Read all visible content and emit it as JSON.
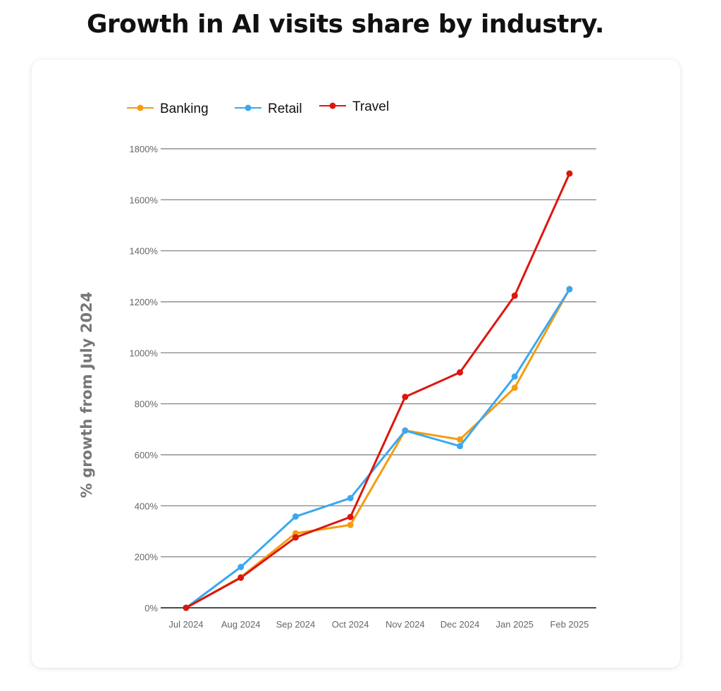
{
  "chart_data": {
    "type": "line",
    "title": "Growth in AI visits share by industry.",
    "ylabel": "% growth from July 2024",
    "xlabel": "",
    "categories": [
      "Jul 2024",
      "Aug 2024",
      "Sep 2024",
      "Oct 2024",
      "Nov 2024",
      "Dec 2024",
      "Jan 2025",
      "Feb 2025"
    ],
    "ylim": [
      0,
      1800
    ],
    "yticks": [
      0,
      200,
      400,
      600,
      800,
      1000,
      1200,
      1400,
      1600,
      1800
    ],
    "ytick_labels": [
      "0%",
      "200%",
      "400%",
      "600%",
      "800%",
      "1000%",
      "1200%",
      "1400%",
      "1600%",
      "1800%"
    ],
    "grid": true,
    "legend": "top-left",
    "series": [
      {
        "name": "Banking",
        "color": "#f59c0f",
        "values": [
          0,
          120,
          292,
          325,
          695,
          660,
          863,
          1250
        ]
      },
      {
        "name": "Retail",
        "color": "#3aa8f0",
        "values": [
          0,
          160,
          358,
          430,
          695,
          634,
          907,
          1249
        ]
      },
      {
        "name": "Travel",
        "color": "#dc160f",
        "values": [
          0,
          118,
          276,
          356,
          827,
          923,
          1224,
          1703
        ]
      }
    ]
  }
}
